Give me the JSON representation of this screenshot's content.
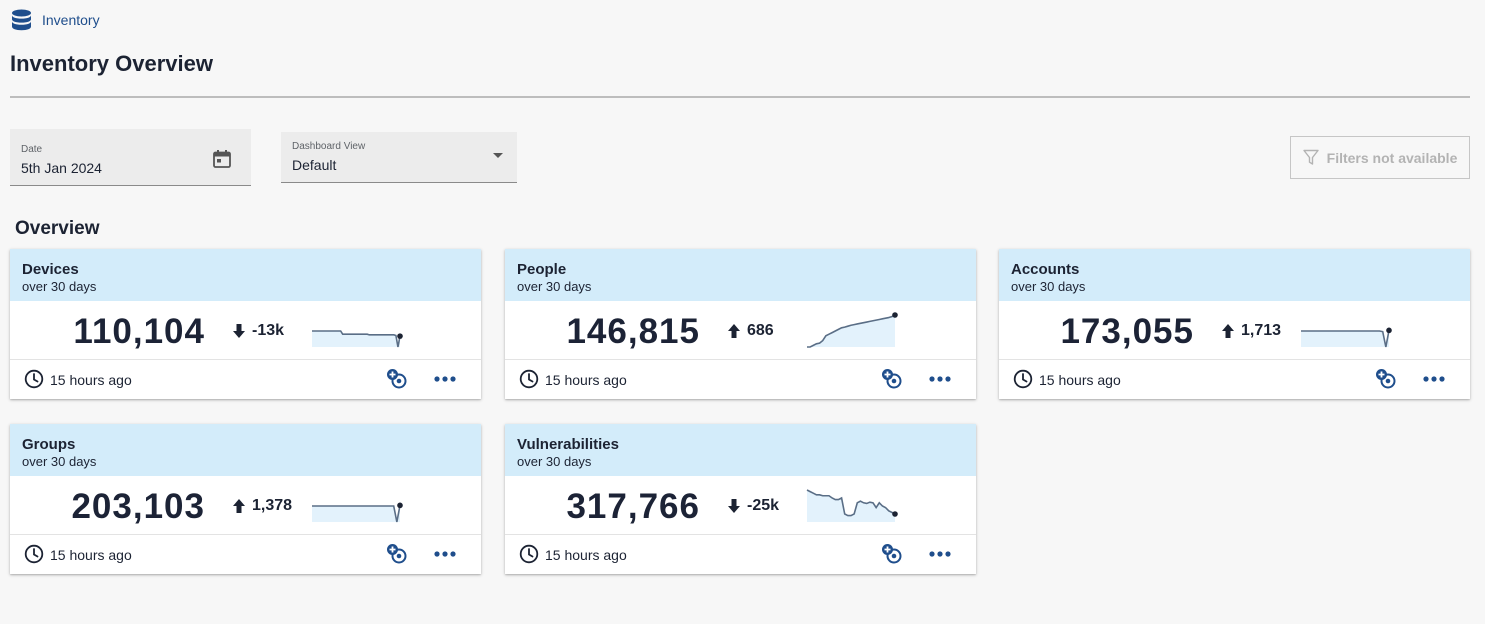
{
  "breadcrumb": {
    "icon": "database-icon",
    "label": "Inventory"
  },
  "page": {
    "title": "Inventory Overview"
  },
  "filters": {
    "date_label": "Date",
    "date_value": "5th Jan 2024",
    "view_label": "Dashboard View",
    "view_value": "Default",
    "filters_button_label": "Filters not available"
  },
  "overview": {
    "title": "Overview",
    "cards": [
      {
        "title": "Devices",
        "subtitle": "over 30 days",
        "value": "110,104",
        "delta": "-13k",
        "direction": "down",
        "updated": "15 hours ago",
        "trend": [
          0.5,
          0.5,
          0.5,
          0.5,
          0.5,
          0.5,
          0.5,
          0.5,
          0.5,
          0.5,
          0.5,
          0.5,
          0.5,
          0.5,
          0.5,
          0.4,
          0.4,
          0.4,
          0.4,
          0.4,
          0.4,
          0.4,
          0.4,
          0.4,
          0.4,
          0.4,
          0.4,
          0.4,
          0.38,
          0.38,
          0.38,
          0.38,
          0.38,
          0.38,
          0.38,
          0.38,
          0.38,
          0.38,
          0.38,
          0.38,
          0.38,
          0.36,
          0.0,
          0.34
        ]
      },
      {
        "title": "People",
        "subtitle": "over 30 days",
        "value": "146,815",
        "delta": "686",
        "direction": "up",
        "updated": "15 hours ago",
        "trend": [
          0.0,
          0.0,
          0.05,
          0.1,
          0.12,
          0.2,
          0.35,
          0.4,
          0.45,
          0.5,
          0.55,
          0.6,
          0.62,
          0.65,
          0.68,
          0.7,
          0.72,
          0.74,
          0.76,
          0.78,
          0.8,
          0.82,
          0.84,
          0.86,
          0.88,
          0.9,
          0.92,
          0.95,
          1.0
        ]
      },
      {
        "title": "Accounts",
        "subtitle": "over 30 days",
        "value": "173,055",
        "delta": "1,713",
        "direction": "up",
        "updated": "15 hours ago",
        "trend": [
          0.5,
          0.5,
          0.5,
          0.5,
          0.5,
          0.5,
          0.5,
          0.5,
          0.5,
          0.5,
          0.5,
          0.5,
          0.5,
          0.5,
          0.5,
          0.5,
          0.5,
          0.5,
          0.5,
          0.5,
          0.5,
          0.5,
          0.5,
          0.5,
          0.5,
          0.5,
          0.48,
          0.0,
          0.52
        ]
      },
      {
        "title": "Groups",
        "subtitle": "over 30 days",
        "value": "203,103",
        "delta": "1,378",
        "direction": "up",
        "updated": "15 hours ago",
        "trend": [
          0.5,
          0.5,
          0.5,
          0.5,
          0.5,
          0.5,
          0.5,
          0.5,
          0.5,
          0.5,
          0.5,
          0.5,
          0.5,
          0.5,
          0.5,
          0.5,
          0.5,
          0.5,
          0.5,
          0.5,
          0.5,
          0.5,
          0.5,
          0.5,
          0.5,
          0.5,
          0.5,
          0.0,
          0.52
        ]
      },
      {
        "title": "Vulnerabilities",
        "subtitle": "over 30 days",
        "value": "317,766",
        "delta": "-25k",
        "direction": "down",
        "updated": "15 hours ago",
        "trend": [
          1.0,
          0.95,
          0.9,
          0.85,
          0.85,
          0.82,
          0.82,
          0.82,
          0.75,
          0.7,
          0.7,
          0.75,
          0.25,
          0.2,
          0.2,
          0.25,
          0.6,
          0.65,
          0.6,
          0.58,
          0.62,
          0.6,
          0.45,
          0.6,
          0.5,
          0.45,
          0.35,
          0.3,
          0.25
        ]
      }
    ]
  },
  "icons": {
    "date": "calendar-icon",
    "view": "chevron-down-icon",
    "filters": "filter-icon",
    "updated": "clock-icon",
    "compare": "add-compare-icon",
    "menu": "more-options-icon"
  },
  "colors": {
    "header": "#d3ecfa",
    "accent": "#1f4e8c",
    "spark_line": "#5a6e86",
    "spark_fill": "#e3f2fc"
  }
}
